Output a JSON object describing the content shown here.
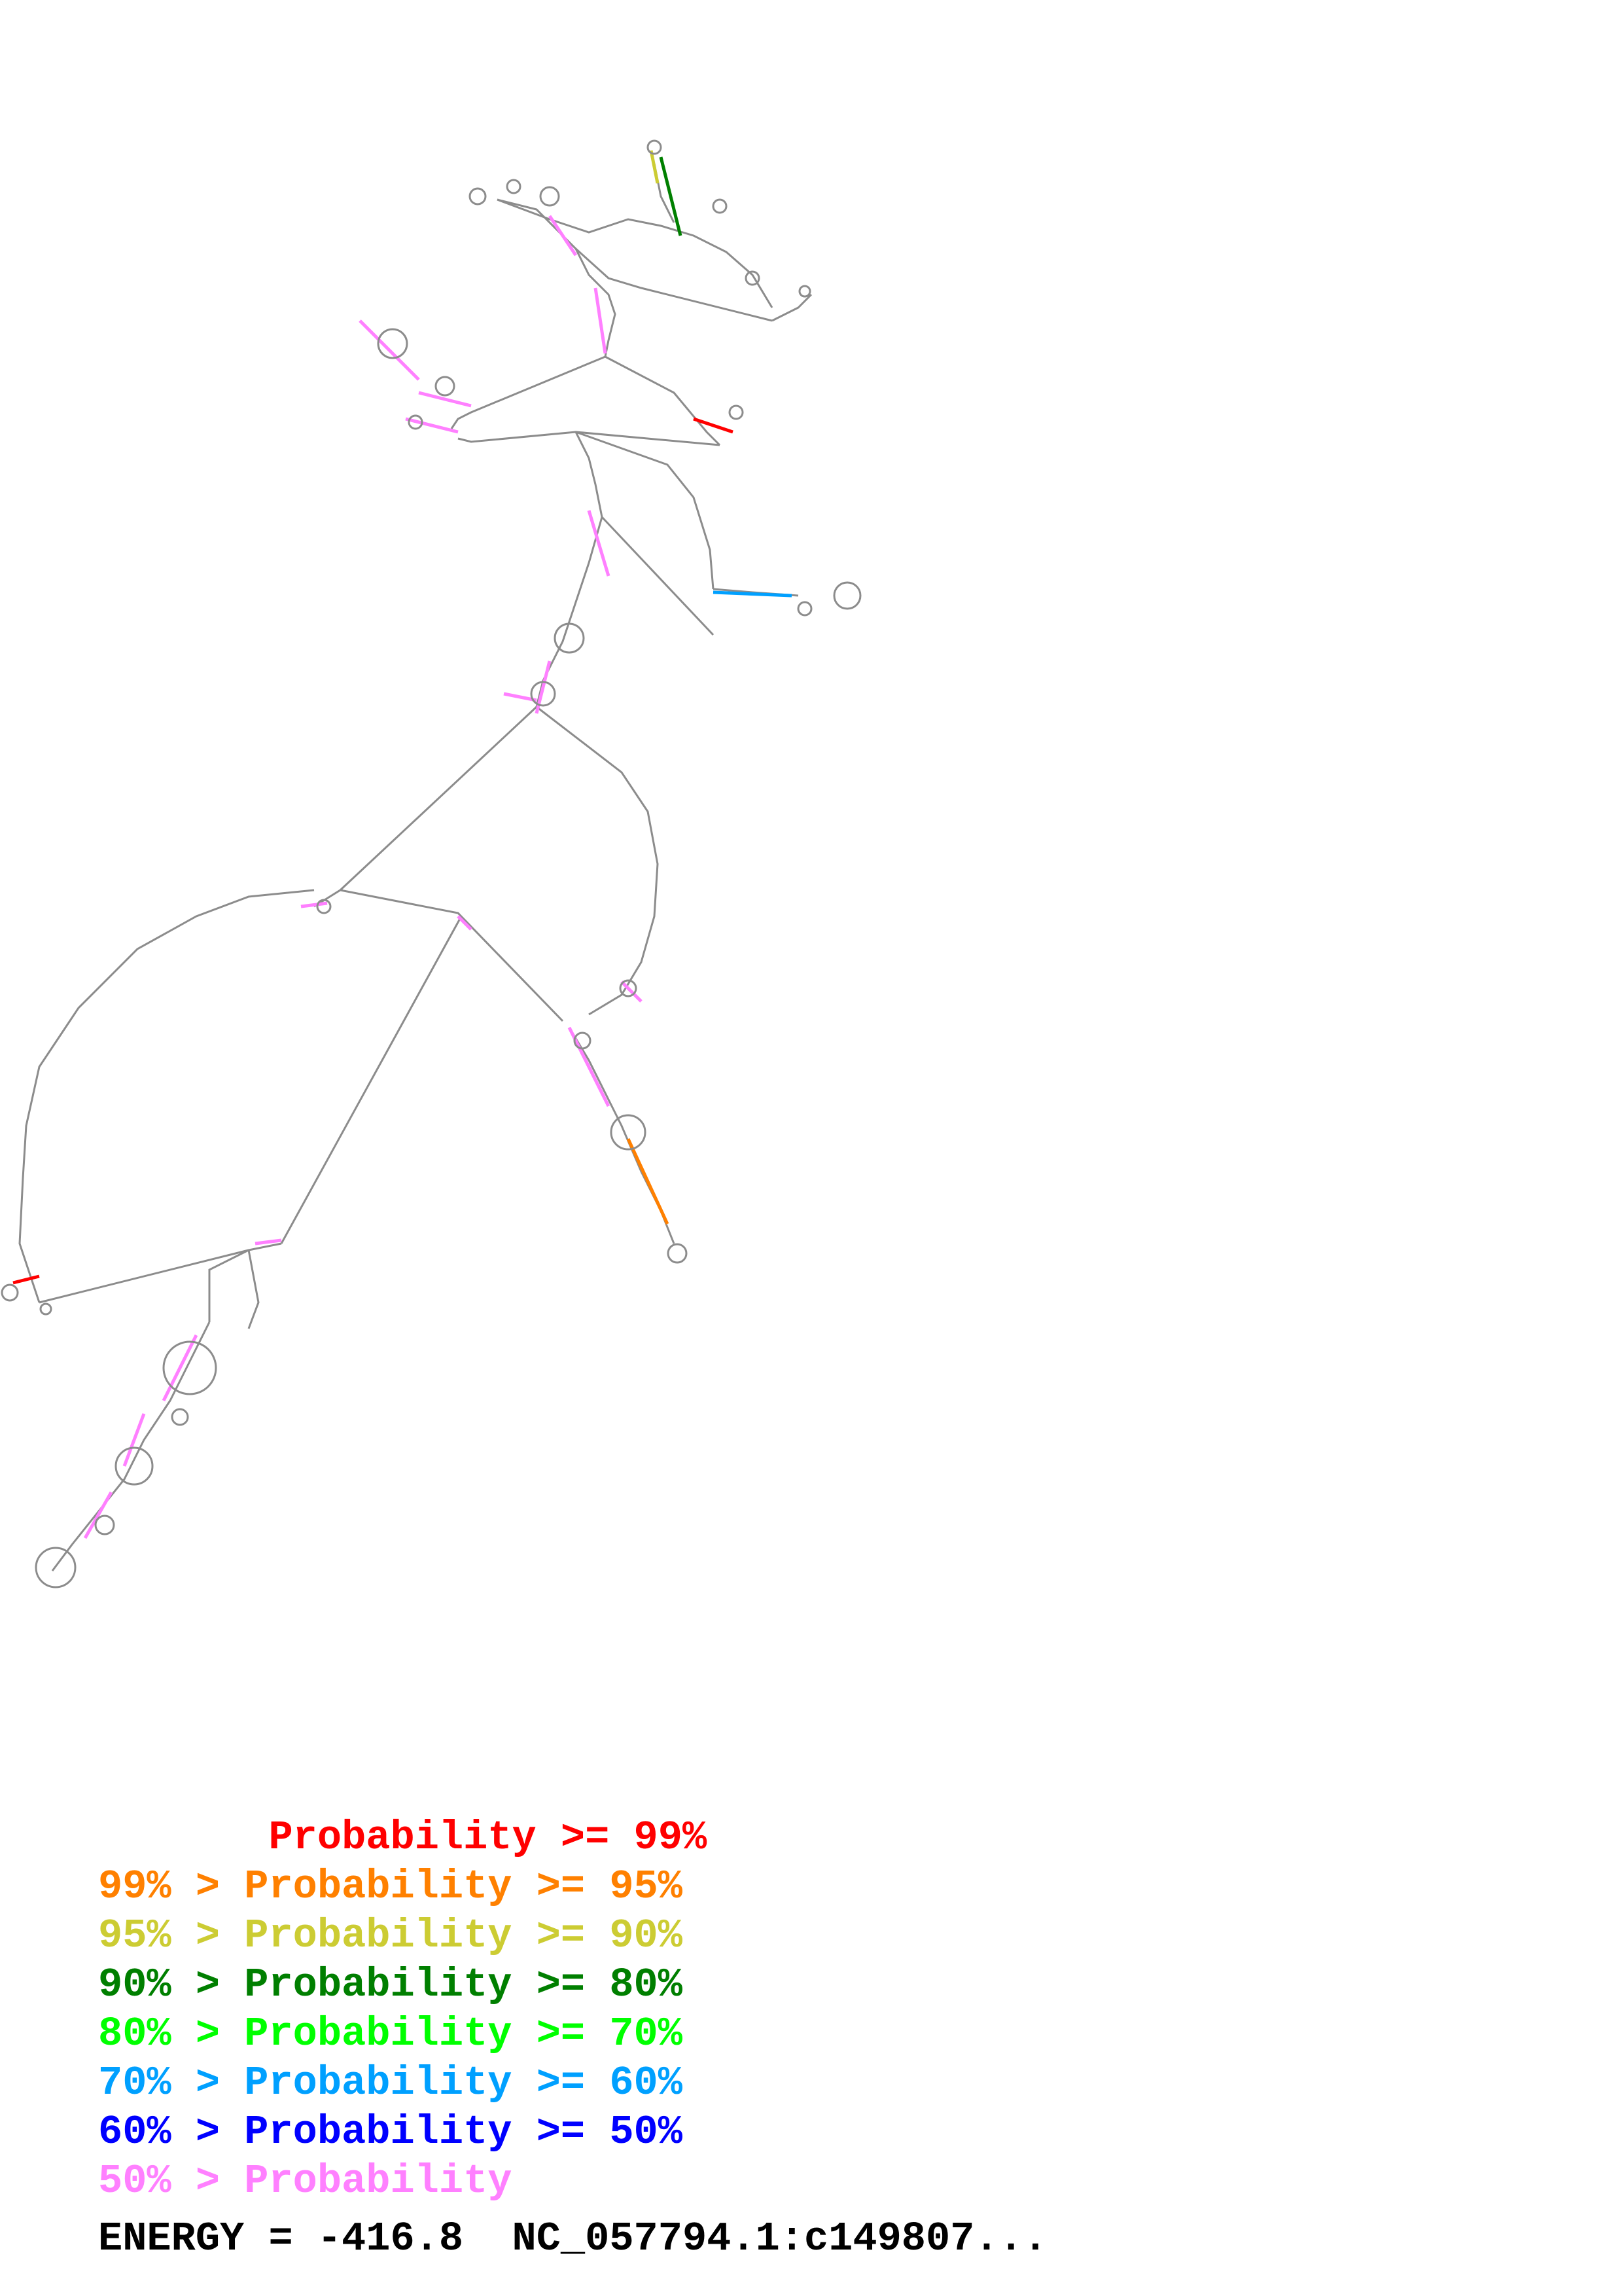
{
  "legend": [
    {
      "prefix": "       ",
      "text": "Probability >= 99%",
      "color": "#ff0000"
    },
    {
      "prefix": "",
      "text": "99% > Probability >= 95%",
      "color": "#ff8000"
    },
    {
      "prefix": "",
      "text": "95% > Probability >= 90%",
      "color": "#cccc33"
    },
    {
      "prefix": "",
      "text": "90% > Probability >= 80%",
      "color": "#007f00"
    },
    {
      "prefix": "",
      "text": "80% > Probability >= 70%",
      "color": "#00ff00"
    },
    {
      "prefix": "",
      "text": "70% > Probability >= 60%",
      "color": "#00a0ff"
    },
    {
      "prefix": "",
      "text": "60% > Probability >= 50%",
      "color": "#0000ff"
    },
    {
      "prefix": "",
      "text": "50% > Probability",
      "color": "#ff80ff"
    }
  ],
  "footer": {
    "energy_line": "ENERGY = -416.8  NC_057794.1:c149807..."
  },
  "colors": {
    "backbone": "#8c8c8c",
    "helix_default": "#ff80ff"
  }
}
